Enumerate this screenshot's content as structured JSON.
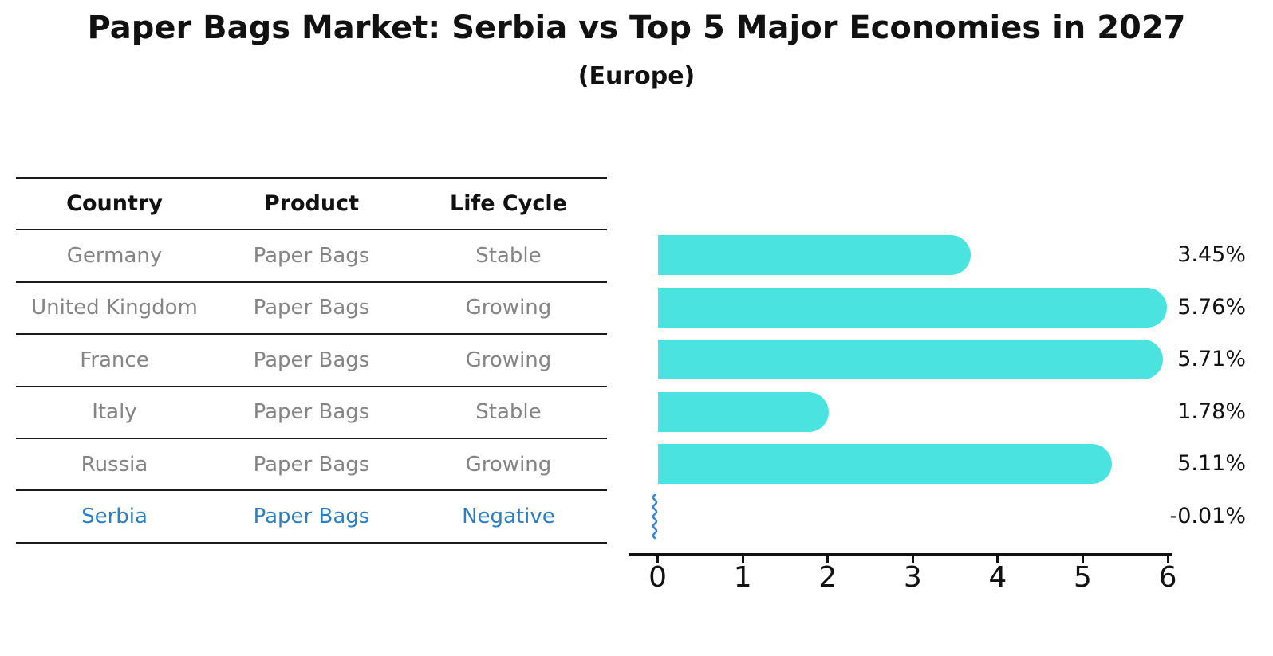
{
  "header": {
    "title": "Paper Bags Market: Serbia vs Top 5 Major Economies in 2027",
    "subtitle": "(Europe)"
  },
  "table": {
    "columns": [
      "Country",
      "Product",
      "Life Cycle"
    ],
    "rows": [
      {
        "country": "Germany",
        "product": "Paper Bags",
        "life_cycle": "Stable",
        "highlight": false
      },
      {
        "country": "United Kingdom",
        "product": "Paper Bags",
        "life_cycle": "Growing",
        "highlight": false
      },
      {
        "country": "France",
        "product": "Paper Bags",
        "life_cycle": "Growing",
        "highlight": false
      },
      {
        "country": "Italy",
        "product": "Paper Bags",
        "life_cycle": "Stable",
        "highlight": false
      },
      {
        "country": "Russia",
        "product": "Paper Bags",
        "life_cycle": "Growing",
        "highlight": false
      },
      {
        "country": "Serbia",
        "product": "Paper Bags",
        "life_cycle": "Negative",
        "highlight": true
      }
    ]
  },
  "chart_data": {
    "type": "bar",
    "orientation": "horizontal",
    "title": "Paper Bags Market: Serbia vs Top 5 Major Economies in 2027",
    "subtitle": "(Europe)",
    "categories": [
      "Germany",
      "United Kingdom",
      "France",
      "Italy",
      "Russia",
      "Serbia"
    ],
    "values": [
      3.45,
      5.76,
      5.71,
      1.78,
      5.11,
      -0.01
    ],
    "value_labels": [
      "3.45%",
      "5.76%",
      "5.71%",
      "1.78%",
      "5.11%",
      "-0.01%"
    ],
    "x_ticks": [
      "0",
      "1",
      "2",
      "3",
      "4",
      "5",
      "6"
    ],
    "xlim": [
      0,
      6
    ],
    "grid": false,
    "legend": false,
    "colors": {
      "bar": "#4ae3e0",
      "highlight_text": "#2e7ebf",
      "negative_marker": "#3f87c9",
      "row_text": "#848484",
      "axis": "#111111"
    }
  }
}
